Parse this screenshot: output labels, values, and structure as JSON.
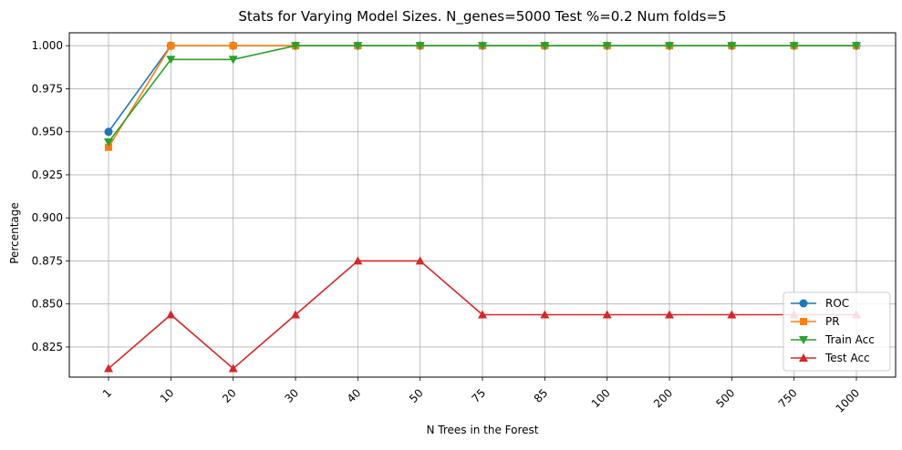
{
  "chart_data": {
    "type": "line",
    "title": "Stats for Varying Model Sizes. N_genes=5000 Test %=0.2 Num folds=5",
    "xlabel": "N Trees in the Forest",
    "ylabel": "Percentage",
    "categories": [
      "1",
      "10",
      "20",
      "30",
      "40",
      "50",
      "75",
      "85",
      "100",
      "200",
      "500",
      "750",
      "1000"
    ],
    "ylim": [
      0.8075,
      1.0075
    ],
    "yticks": [
      "0.825",
      "0.850",
      "0.875",
      "0.900",
      "0.925",
      "0.950",
      "0.975",
      "1.000"
    ],
    "grid": true,
    "legend_position": "bottom-right",
    "series": [
      {
        "name": "ROC",
        "color": "#1f77b4",
        "marker": "circle",
        "values": [
          0.95,
          1.0,
          1.0,
          1.0,
          1.0,
          1.0,
          1.0,
          1.0,
          1.0,
          1.0,
          1.0,
          1.0,
          1.0
        ]
      },
      {
        "name": "PR",
        "color": "#ff7f0e",
        "marker": "square",
        "values": [
          0.941,
          1.0,
          1.0,
          1.0,
          1.0,
          1.0,
          1.0,
          1.0,
          1.0,
          1.0,
          1.0,
          1.0,
          1.0
        ]
      },
      {
        "name": "Train Acc",
        "color": "#2ca02c",
        "marker": "triangle-down",
        "values": [
          0.944,
          0.992,
          0.992,
          1.0,
          1.0,
          1.0,
          1.0,
          1.0,
          1.0,
          1.0,
          1.0,
          1.0,
          1.0
        ]
      },
      {
        "name": "Test Acc",
        "color": "#d62728",
        "marker": "triangle-up",
        "values": [
          0.8125,
          0.84375,
          0.8125,
          0.84375,
          0.875,
          0.875,
          0.84375,
          0.84375,
          0.84375,
          0.84375,
          0.84375,
          0.84375,
          0.84375
        ]
      }
    ]
  }
}
